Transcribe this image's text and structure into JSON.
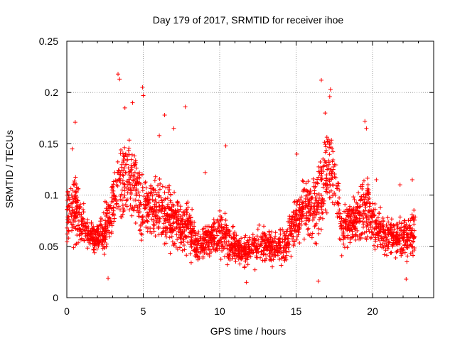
{
  "chart_data": {
    "type": "scatter",
    "title": "Day 179 of 2017, SRMTID for receiver ihoe",
    "xlabel": "GPS time / hours",
    "ylabel": "SRMTID / TECUs",
    "xlim": [
      0,
      24
    ],
    "ylim": [
      0,
      0.25
    ],
    "xticks": [
      0,
      5,
      10,
      15,
      20
    ],
    "xtick_labels": [
      "0",
      "5",
      "10",
      "15",
      "20"
    ],
    "yticks": [
      0,
      0.05,
      0.1,
      0.15,
      0.2,
      0.25
    ],
    "ytick_labels": [
      "0",
      "0.05",
      "0.1",
      "0.15",
      "0.2",
      "0.25"
    ],
    "grid": true,
    "marker": "plus",
    "series": [
      {
        "name": "SRMTID",
        "color": "#ff0000",
        "profile_note": "approximate envelope of the dense point cloud (hour, typical level, spread)",
        "profile": [
          [
            0.0,
            0.08,
            0.03
          ],
          [
            0.5,
            0.085,
            0.04
          ],
          [
            1.0,
            0.07,
            0.03
          ],
          [
            1.5,
            0.06,
            0.02
          ],
          [
            2.0,
            0.058,
            0.018
          ],
          [
            2.5,
            0.065,
            0.025
          ],
          [
            3.0,
            0.09,
            0.035
          ],
          [
            3.5,
            0.12,
            0.05
          ],
          [
            4.0,
            0.115,
            0.045
          ],
          [
            4.5,
            0.11,
            0.045
          ],
          [
            5.0,
            0.085,
            0.04
          ],
          [
            5.5,
            0.09,
            0.035
          ],
          [
            6.0,
            0.085,
            0.035
          ],
          [
            6.5,
            0.08,
            0.035
          ],
          [
            7.0,
            0.075,
            0.035
          ],
          [
            7.5,
            0.07,
            0.03
          ],
          [
            8.0,
            0.07,
            0.03
          ],
          [
            8.5,
            0.05,
            0.02
          ],
          [
            9.0,
            0.055,
            0.02
          ],
          [
            9.5,
            0.058,
            0.022
          ],
          [
            10.0,
            0.065,
            0.025
          ],
          [
            10.5,
            0.055,
            0.022
          ],
          [
            11.0,
            0.05,
            0.02
          ],
          [
            11.5,
            0.045,
            0.018
          ],
          [
            12.0,
            0.048,
            0.018
          ],
          [
            12.5,
            0.05,
            0.02
          ],
          [
            13.0,
            0.052,
            0.02
          ],
          [
            13.5,
            0.05,
            0.02
          ],
          [
            14.0,
            0.05,
            0.02
          ],
          [
            14.5,
            0.055,
            0.022
          ],
          [
            15.0,
            0.075,
            0.03
          ],
          [
            15.5,
            0.09,
            0.035
          ],
          [
            16.0,
            0.085,
            0.035
          ],
          [
            16.5,
            0.095,
            0.04
          ],
          [
            17.0,
            0.125,
            0.05
          ],
          [
            17.5,
            0.12,
            0.045
          ],
          [
            18.0,
            0.065,
            0.025
          ],
          [
            18.5,
            0.07,
            0.025
          ],
          [
            19.0,
            0.08,
            0.03
          ],
          [
            19.5,
            0.09,
            0.04
          ],
          [
            20.0,
            0.075,
            0.03
          ],
          [
            20.5,
            0.065,
            0.025
          ],
          [
            21.0,
            0.06,
            0.022
          ],
          [
            21.5,
            0.06,
            0.025
          ],
          [
            22.0,
            0.055,
            0.025
          ],
          [
            22.5,
            0.06,
            0.025
          ],
          [
            22.8,
            0.065,
            0.025
          ]
        ],
        "peaks": [
          [
            3.35,
            0.218
          ],
          [
            3.45,
            0.213
          ],
          [
            3.8,
            0.185
          ],
          [
            4.3,
            0.19
          ],
          [
            4.95,
            0.205
          ],
          [
            5.0,
            0.197
          ],
          [
            6.05,
            0.158
          ],
          [
            6.4,
            0.178
          ],
          [
            7.0,
            0.165
          ],
          [
            7.75,
            0.186
          ],
          [
            0.55,
            0.171
          ],
          [
            0.35,
            0.145
          ],
          [
            9.05,
            0.122
          ],
          [
            10.4,
            0.148
          ],
          [
            15.05,
            0.14
          ],
          [
            16.65,
            0.212
          ],
          [
            17.25,
            0.203
          ],
          [
            17.2,
            0.196
          ],
          [
            16.9,
            0.18
          ],
          [
            19.5,
            0.172
          ],
          [
            19.6,
            0.165
          ],
          [
            20.25,
            0.115
          ],
          [
            22.6,
            0.115
          ],
          [
            21.8,
            0.11
          ],
          [
            2.7,
            0.019
          ],
          [
            16.45,
            0.016
          ],
          [
            11.75,
            0.015
          ],
          [
            22.2,
            0.018
          ]
        ]
      }
    ]
  }
}
